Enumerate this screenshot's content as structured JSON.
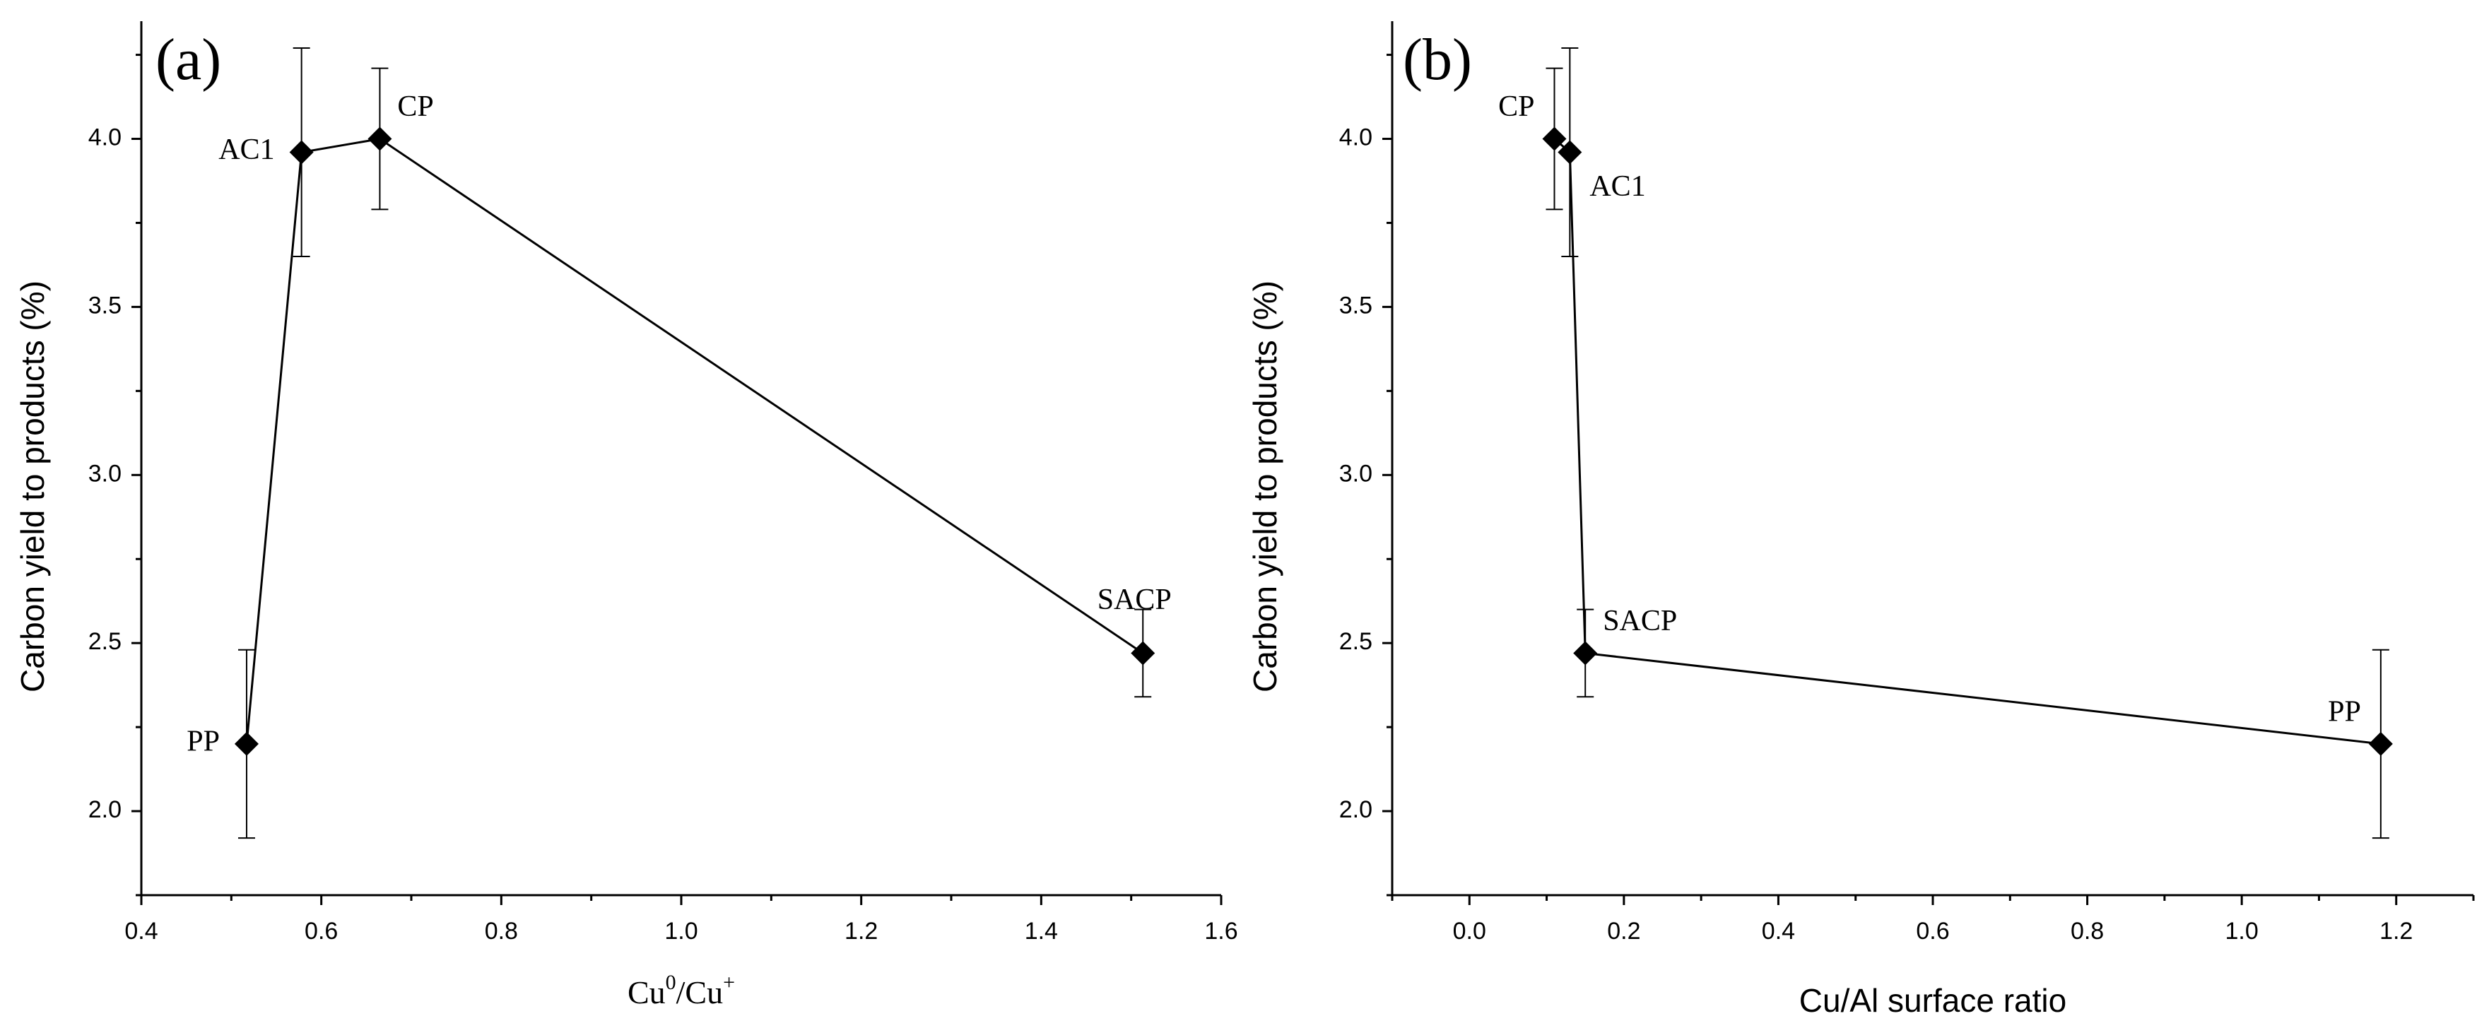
{
  "chart_data": [
    {
      "type": "line",
      "panel": "(a)",
      "xlabel_base": "Cu",
      "xlabel_sup1": "0",
      "xlabel_mid": "/Cu",
      "xlabel_sup2": "+",
      "ylabel": "Carbon yield to products (%)",
      "xlim": [
        0.4,
        1.6
      ],
      "ylim": [
        1.75,
        4.35
      ],
      "xticks": [
        0.4,
        0.6,
        0.8,
        1.0,
        1.2,
        1.4,
        1.6
      ],
      "xtick_labels": [
        "0.4",
        "0.6",
        "0.8",
        "1.0",
        "1.2",
        "1.4",
        "1.6"
      ],
      "yticks": [
        2.0,
        2.5,
        3.0,
        3.5,
        4.0
      ],
      "ytick_labels": [
        "2.0",
        "2.5",
        "3.0",
        "3.5",
        "4.0"
      ],
      "points": [
        {
          "label": "PP",
          "x": 0.517,
          "y": 2.2,
          "err": 0.28,
          "label_pos": "left"
        },
        {
          "label": "AC1",
          "x": 0.578,
          "y": 3.96,
          "err": 0.31,
          "label_pos": "left"
        },
        {
          "label": "CP",
          "x": 0.665,
          "y": 4.0,
          "err": 0.21,
          "label_pos": "top-right"
        },
        {
          "label": "SACP",
          "x": 1.513,
          "y": 2.47,
          "err": 0.13,
          "label_pos": "top"
        }
      ]
    },
    {
      "type": "line",
      "panel": "(b)",
      "xlabel": "Cu/Al surface ratio",
      "ylabel": "Carbon yield to products (%)",
      "xlim": [
        -0.1,
        1.3
      ],
      "ylim": [
        1.75,
        4.35
      ],
      "xticks": [
        0.0,
        0.2,
        0.4,
        0.6,
        0.8,
        1.0,
        1.2
      ],
      "xtick_labels": [
        "0.0",
        "0.2",
        "0.4",
        "0.6",
        "0.8",
        "1.0",
        "1.2"
      ],
      "yticks": [
        2.0,
        2.5,
        3.0,
        3.5,
        4.0
      ],
      "ytick_labels": [
        "2.0",
        "2.5",
        "3.0",
        "3.5",
        "4.0"
      ],
      "points": [
        {
          "label": "CP",
          "x": 0.11,
          "y": 4.0,
          "err": 0.21,
          "label_pos": "top-left"
        },
        {
          "label": "AC1",
          "x": 0.13,
          "y": 3.96,
          "err": 0.31,
          "label_pos": "right"
        },
        {
          "label": "SACP",
          "x": 0.15,
          "y": 2.47,
          "err": 0.13,
          "label_pos": "top-right"
        },
        {
          "label": "PP",
          "x": 1.18,
          "y": 2.2,
          "err": 0.28,
          "label_pos": "top-left"
        }
      ]
    }
  ]
}
